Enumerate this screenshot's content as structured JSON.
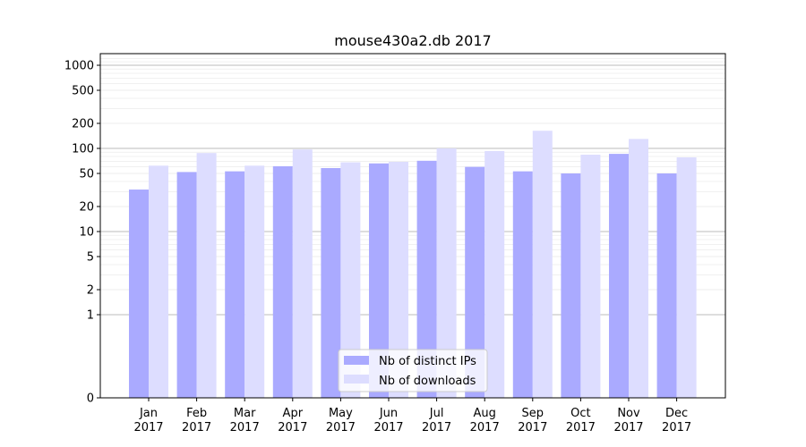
{
  "chart_data": {
    "type": "bar",
    "title": "mouse430a2.db 2017",
    "xlabel": "",
    "ylabel": "",
    "yscale": "symlog",
    "ylim": [
      0,
      1300
    ],
    "grid": "horizontal",
    "legend_position": "lower-center",
    "categories": [
      [
        "Jan",
        "2017"
      ],
      [
        "Feb",
        "2017"
      ],
      [
        "Mar",
        "2017"
      ],
      [
        "Apr",
        "2017"
      ],
      [
        "May",
        "2017"
      ],
      [
        "Jun",
        "2017"
      ],
      [
        "Jul",
        "2017"
      ],
      [
        "Aug",
        "2017"
      ],
      [
        "Sep",
        "2017"
      ],
      [
        "Oct",
        "2017"
      ],
      [
        "Nov",
        "2017"
      ],
      [
        "Dec",
        "2017"
      ]
    ],
    "y_ticks": [
      0,
      1,
      2,
      5,
      10,
      20,
      50,
      100,
      200,
      500,
      1000
    ],
    "y_tick_labels": [
      "0",
      "1",
      "2",
      "5",
      "10",
      "20",
      "50",
      "100",
      "200",
      "500",
      "1000"
    ],
    "series": [
      {
        "name": "Nb of distinct IPs",
        "color": "#aaaaff",
        "values": [
          32,
          52,
          53,
          61,
          58,
          66,
          71,
          60,
          53,
          50,
          86,
          50
        ]
      },
      {
        "name": "Nb of downloads",
        "color": "#ddddff",
        "values": [
          62,
          88,
          62,
          97,
          68,
          69,
          100,
          93,
          163,
          84,
          130,
          78
        ]
      }
    ]
  }
}
